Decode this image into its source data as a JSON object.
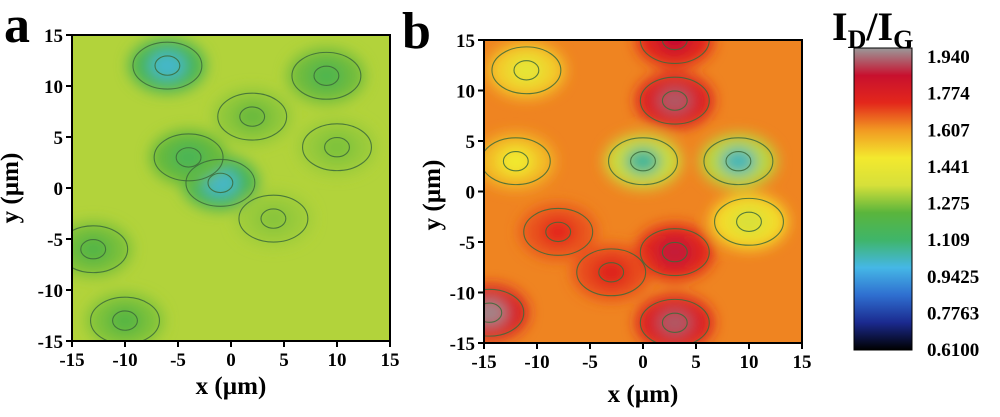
{
  "chart_data": [
    {
      "type": "heatmap",
      "panel": "a",
      "xlabel": "x (µm)",
      "ylabel": "y (µm)",
      "xlim": [
        -15,
        15
      ],
      "ylim": [
        -15,
        15
      ],
      "xticks": [
        "-15",
        "-10",
        "-5",
        "0",
        "5",
        "10",
        "15"
      ],
      "yticks": [
        "15",
        "10",
        "5",
        "0",
        "-5",
        "-10",
        "-15"
      ],
      "baseline": 1.3,
      "features": [
        {
          "x": -6,
          "y": 12,
          "value": 1.0
        },
        {
          "x": -1,
          "y": 0.5,
          "value": 1.0
        },
        {
          "x": -4,
          "y": 3,
          "value": 1.15
        },
        {
          "x": 9,
          "y": 11,
          "value": 1.17
        },
        {
          "x": -13,
          "y": -6,
          "value": 1.19
        },
        {
          "x": -10,
          "y": -13,
          "value": 1.2
        },
        {
          "x": 2,
          "y": 7,
          "value": 1.23
        },
        {
          "x": 10,
          "y": 4,
          "value": 1.25
        },
        {
          "x": 4,
          "y": -3,
          "value": 1.26
        }
      ]
    },
    {
      "type": "heatmap",
      "panel": "b",
      "xlabel": "x (µm)",
      "ylabel": "y (µm)",
      "xlim": [
        -15,
        15
      ],
      "ylim": [
        -15,
        15
      ],
      "xticks": [
        "-15",
        "-10",
        "-5",
        "0",
        "5",
        "10",
        "15"
      ],
      "yticks": [
        "15",
        "10",
        "5",
        "0",
        "-5",
        "-10",
        "-15"
      ],
      "baseline": 1.6,
      "features": [
        {
          "x": 0,
          "y": 3,
          "value": 1.05
        },
        {
          "x": 9,
          "y": 3,
          "value": 1.02
        },
        {
          "x": 10,
          "y": -3,
          "value": 1.35
        },
        {
          "x": -11,
          "y": 12,
          "value": 1.4
        },
        {
          "x": -12,
          "y": 3,
          "value": 1.45
        },
        {
          "x": 3,
          "y": 9,
          "value": 1.88
        },
        {
          "x": 3,
          "y": 15,
          "value": 1.82
        },
        {
          "x": 3,
          "y": -6,
          "value": 1.83
        },
        {
          "x": 3,
          "y": -13,
          "value": 1.88
        },
        {
          "x": -14.5,
          "y": -12,
          "value": 1.92
        },
        {
          "x": -3,
          "y": -8,
          "value": 1.72
        },
        {
          "x": -8,
          "y": -4,
          "value": 1.7
        }
      ]
    }
  ],
  "colorbar": {
    "title": "I",
    "sub_d": "D",
    "slash": "/",
    "title2": "I",
    "sub_g": "G",
    "ticks": [
      "1.940",
      "1.774",
      "1.607",
      "1.441",
      "1.275",
      "1.109",
      "0.9425",
      "0.7763",
      "0.6100"
    ],
    "min": 0.61,
    "max": 1.94,
    "colors": [
      "#000000",
      "#1b2a8f",
      "#2f6fd0",
      "#45b7e6",
      "#3fb56a",
      "#5ab53c",
      "#d6e03a",
      "#f3e92e",
      "#f29a22",
      "#e3271b",
      "#c8102e",
      "#9a9a9a"
    ]
  }
}
